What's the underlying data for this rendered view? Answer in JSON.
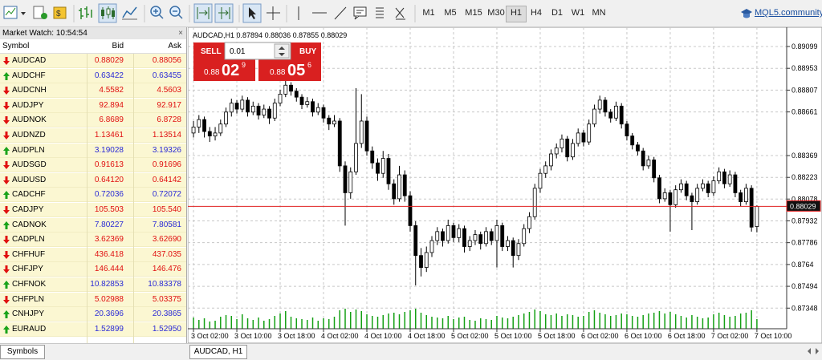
{
  "toolbar": {
    "timeframes": [
      "M1",
      "M5",
      "M15",
      "M30",
      "H1",
      "H4",
      "D1",
      "W1",
      "MN"
    ],
    "active_timeframe": 4,
    "community_link": "MQL5.community"
  },
  "market_watch": {
    "title": "Market Watch: 10:54:54",
    "columns": [
      "Symbol",
      "Bid",
      "Ask"
    ],
    "up_text_color": "#2b2bd6",
    "down_text_color": "#e01010",
    "up_arrow_color": "#1aa31a",
    "down_arrow_color": "#e01010",
    "rows": [
      {
        "symbol": "AUDCAD",
        "bid": "0.88029",
        "ask": "0.88056",
        "direction": "down"
      },
      {
        "symbol": "AUDCHF",
        "bid": "0.63422",
        "ask": "0.63455",
        "direction": "up"
      },
      {
        "symbol": "AUDCNH",
        "bid": "4.5582",
        "ask": "4.5603",
        "direction": "down"
      },
      {
        "symbol": "AUDJPY",
        "bid": "92.894",
        "ask": "92.917",
        "direction": "down"
      },
      {
        "symbol": "AUDNOK",
        "bid": "6.8689",
        "ask": "6.8728",
        "direction": "down"
      },
      {
        "symbol": "AUDNZD",
        "bid": "1.13461",
        "ask": "1.13514",
        "direction": "down"
      },
      {
        "symbol": "AUDPLN",
        "bid": "3.19028",
        "ask": "3.19326",
        "direction": "up"
      },
      {
        "symbol": "AUDSGD",
        "bid": "0.91613",
        "ask": "0.91696",
        "direction": "down"
      },
      {
        "symbol": "AUDUSD",
        "bid": "0.64120",
        "ask": "0.64142",
        "direction": "down"
      },
      {
        "symbol": "CADCHF",
        "bid": "0.72036",
        "ask": "0.72072",
        "direction": "up"
      },
      {
        "symbol": "CADJPY",
        "bid": "105.503",
        "ask": "105.540",
        "direction": "down"
      },
      {
        "symbol": "CADNOK",
        "bid": "7.80227",
        "ask": "7.80581",
        "direction": "up"
      },
      {
        "symbol": "CADPLN",
        "bid": "3.62369",
        "ask": "3.62690",
        "direction": "down"
      },
      {
        "symbol": "CHFHUF",
        "bid": "436.418",
        "ask": "437.035",
        "direction": "down"
      },
      {
        "symbol": "CHFJPY",
        "bid": "146.444",
        "ask": "146.476",
        "direction": "down"
      },
      {
        "symbol": "CHFNOK",
        "bid": "10.82853",
        "ask": "10.83378",
        "direction": "up"
      },
      {
        "symbol": "CHFPLN",
        "bid": "5.02988",
        "ask": "5.03375",
        "direction": "down"
      },
      {
        "symbol": "CNHJPY",
        "bid": "20.3696",
        "ask": "20.3865",
        "direction": "up"
      },
      {
        "symbol": "EURAUD",
        "bid": "1.52899",
        "ask": "1.52950",
        "direction": "up"
      }
    ]
  },
  "tabs": {
    "market_watch": "Symbols",
    "chart": "AUDCAD, H1"
  },
  "trade_panel": {
    "sell": "SELL",
    "buy": "BUY",
    "lot": "0.01",
    "sell_big": "0.88",
    "sell_pips": "02",
    "sell_point": "9",
    "buy_big": "0.88",
    "buy_pips": "05",
    "buy_point": "6"
  },
  "chart_data": {
    "type": "candlestick",
    "title": "AUDCAD,H1",
    "candles": [
      [
        0.8852,
        0.886,
        0.8849,
        0.8856
      ],
      [
        0.8856,
        0.8864,
        0.8852,
        0.8861
      ],
      [
        0.8861,
        0.8863,
        0.8849,
        0.8853
      ],
      [
        0.8853,
        0.8856,
        0.8846,
        0.885
      ],
      [
        0.885,
        0.8856,
        0.8847,
        0.8852
      ],
      [
        0.8852,
        0.8861,
        0.885,
        0.8858
      ],
      [
        0.8858,
        0.8869,
        0.8856,
        0.8866
      ],
      [
        0.8866,
        0.8875,
        0.8863,
        0.8872
      ],
      [
        0.8872,
        0.8874,
        0.8865,
        0.8868
      ],
      [
        0.8868,
        0.8877,
        0.8866,
        0.8874
      ],
      [
        0.8874,
        0.8876,
        0.8863,
        0.8866
      ],
      [
        0.8866,
        0.8873,
        0.8864,
        0.887
      ],
      [
        0.887,
        0.8872,
        0.8861,
        0.8864
      ],
      [
        0.8864,
        0.8871,
        0.8862,
        0.8868
      ],
      [
        0.8868,
        0.887,
        0.8858,
        0.8862
      ],
      [
        0.8862,
        0.8875,
        0.886,
        0.8872
      ],
      [
        0.8872,
        0.8881,
        0.887,
        0.8878
      ],
      [
        0.8878,
        0.8887,
        0.8876,
        0.8884
      ],
      [
        0.8884,
        0.8886,
        0.8877,
        0.888
      ],
      [
        0.888,
        0.8882,
        0.8873,
        0.8876
      ],
      [
        0.8876,
        0.8878,
        0.8868,
        0.8871
      ],
      [
        0.8871,
        0.8876,
        0.8869,
        0.8873
      ],
      [
        0.8873,
        0.8875,
        0.8863,
        0.8866
      ],
      [
        0.8866,
        0.8872,
        0.8864,
        0.8869
      ],
      [
        0.8869,
        0.8871,
        0.8859,
        0.8862
      ],
      [
        0.8862,
        0.8864,
        0.8854,
        0.8858
      ],
      [
        0.8858,
        0.8864,
        0.8856,
        0.886
      ],
      [
        0.886,
        0.8862,
        0.8826,
        0.883
      ],
      [
        0.883,
        0.8833,
        0.879,
        0.8812
      ],
      [
        0.8812,
        0.8829,
        0.8808,
        0.8826
      ],
      [
        0.8826,
        0.8882,
        0.8824,
        0.8845
      ],
      [
        0.8845,
        0.8878,
        0.8842,
        0.886
      ],
      [
        0.886,
        0.8863,
        0.8837,
        0.884
      ],
      [
        0.884,
        0.8843,
        0.8828,
        0.8832
      ],
      [
        0.8832,
        0.8835,
        0.882,
        0.8825
      ],
      [
        0.8825,
        0.884,
        0.8822,
        0.8835
      ],
      [
        0.8835,
        0.8838,
        0.8814,
        0.8818
      ],
      [
        0.8818,
        0.8821,
        0.8804,
        0.8808
      ],
      [
        0.8808,
        0.883,
        0.8806,
        0.8824
      ],
      [
        0.8824,
        0.8827,
        0.8806,
        0.881
      ],
      [
        0.881,
        0.8813,
        0.8786,
        0.879
      ],
      [
        0.879,
        0.8793,
        0.875,
        0.877
      ],
      [
        0.877,
        0.8775,
        0.8756,
        0.8762
      ],
      [
        0.8762,
        0.8776,
        0.8759,
        0.8772
      ],
      [
        0.8772,
        0.8783,
        0.8769,
        0.878
      ],
      [
        0.878,
        0.8789,
        0.8777,
        0.8786
      ],
      [
        0.8786,
        0.8788,
        0.8776,
        0.878
      ],
      [
        0.878,
        0.8794,
        0.8778,
        0.879
      ],
      [
        0.879,
        0.8792,
        0.8779,
        0.8782
      ],
      [
        0.8782,
        0.8791,
        0.8779,
        0.8788
      ],
      [
        0.8788,
        0.879,
        0.8772,
        0.8776
      ],
      [
        0.8776,
        0.8783,
        0.8773,
        0.878
      ],
      [
        0.878,
        0.8787,
        0.8777,
        0.8784
      ],
      [
        0.8784,
        0.8786,
        0.8774,
        0.8778
      ],
      [
        0.8778,
        0.8789,
        0.8776,
        0.8786
      ],
      [
        0.8786,
        0.8788,
        0.8777,
        0.878
      ],
      [
        0.878,
        0.8794,
        0.8762,
        0.879
      ],
      [
        0.879,
        0.8792,
        0.8773,
        0.8776
      ],
      [
        0.8776,
        0.8783,
        0.8773,
        0.878
      ],
      [
        0.878,
        0.8782,
        0.8762,
        0.877
      ],
      [
        0.877,
        0.8781,
        0.8767,
        0.8778
      ],
      [
        0.8778,
        0.8791,
        0.8776,
        0.8788
      ],
      [
        0.8788,
        0.8799,
        0.8785,
        0.8796
      ],
      [
        0.8796,
        0.8818,
        0.8794,
        0.8815
      ],
      [
        0.8815,
        0.8828,
        0.8812,
        0.8825
      ],
      [
        0.8825,
        0.8833,
        0.8822,
        0.883
      ],
      [
        0.883,
        0.8841,
        0.8827,
        0.8838
      ],
      [
        0.8838,
        0.8845,
        0.8835,
        0.8842
      ],
      [
        0.8842,
        0.8851,
        0.8839,
        0.8848
      ],
      [
        0.8848,
        0.885,
        0.8833,
        0.8836
      ],
      [
        0.8836,
        0.8848,
        0.8834,
        0.8845
      ],
      [
        0.8845,
        0.8855,
        0.8843,
        0.8852
      ],
      [
        0.8852,
        0.8854,
        0.8843,
        0.8846
      ],
      [
        0.8846,
        0.8861,
        0.8844,
        0.8858
      ],
      [
        0.8858,
        0.8871,
        0.8856,
        0.8868
      ],
      [
        0.8868,
        0.8877,
        0.8865,
        0.8874
      ],
      [
        0.8874,
        0.8876,
        0.8863,
        0.8866
      ],
      [
        0.8866,
        0.8868,
        0.8859,
        0.8862
      ],
      [
        0.8862,
        0.8873,
        0.886,
        0.887
      ],
      [
        0.887,
        0.8872,
        0.8855,
        0.8858
      ],
      [
        0.8858,
        0.886,
        0.8847,
        0.885
      ],
      [
        0.885,
        0.8852,
        0.8841,
        0.8844
      ],
      [
        0.8844,
        0.8846,
        0.8837,
        0.884
      ],
      [
        0.884,
        0.8842,
        0.8827,
        0.883
      ],
      [
        0.883,
        0.8837,
        0.8828,
        0.8834
      ],
      [
        0.8834,
        0.8836,
        0.8819,
        0.8822
      ],
      [
        0.8822,
        0.8824,
        0.8805,
        0.8808
      ],
      [
        0.8808,
        0.8815,
        0.8806,
        0.8812
      ],
      [
        0.8812,
        0.8814,
        0.8786,
        0.8804
      ],
      [
        0.8804,
        0.8817,
        0.8802,
        0.8814
      ],
      [
        0.8814,
        0.8821,
        0.8812,
        0.8818
      ],
      [
        0.8818,
        0.882,
        0.8807,
        0.881
      ],
      [
        0.881,
        0.8812,
        0.8787,
        0.8806
      ],
      [
        0.8806,
        0.8818,
        0.8804,
        0.8815
      ],
      [
        0.8815,
        0.8821,
        0.8813,
        0.8818
      ],
      [
        0.8818,
        0.882,
        0.8809,
        0.8812
      ],
      [
        0.8812,
        0.8823,
        0.881,
        0.882
      ],
      [
        0.882,
        0.8829,
        0.8818,
        0.8826
      ],
      [
        0.8826,
        0.8828,
        0.8815,
        0.8818
      ],
      [
        0.8818,
        0.8827,
        0.8816,
        0.8824
      ],
      [
        0.8824,
        0.8826,
        0.8809,
        0.8812
      ],
      [
        0.8812,
        0.8814,
        0.8803,
        0.8806
      ],
      [
        0.8806,
        0.8818,
        0.8804,
        0.8815
      ],
      [
        0.8815,
        0.8817,
        0.8786,
        0.8789
      ],
      [
        0.87894,
        0.88036,
        0.87855,
        0.88029
      ]
    ],
    "volumes": [
      1400,
      1100,
      1300,
      900,
      1000,
      1500,
      1700,
      1600,
      1200,
      1800,
      1300,
      1100,
      1400,
      1000,
      1200,
      1600,
      1900,
      2200,
      1500,
      1300,
      1200,
      1100,
      1400,
      1000,
      1300,
      1200,
      1500,
      2300,
      2500,
      2100,
      2400,
      2200,
      1800,
      1600,
      1500,
      1700,
      1900,
      2000,
      1800,
      2100,
      2300,
      2500,
      2000,
      1700,
      1500,
      1400,
      1300,
      1600,
      1200,
      1400,
      1500,
      1100,
      1000,
      1300,
      1200,
      1100,
      1600,
      1400,
      1300,
      1500,
      1700,
      1900,
      2100,
      2400,
      2200,
      1800,
      1700,
      1900,
      1600,
      1800,
      1700,
      1500,
      1600,
      2100,
      2300,
      2000,
      1800,
      1600,
      1700,
      1900,
      1800,
      1600,
      1500,
      1700,
      1900,
      2000,
      2200,
      1900,
      2100,
      1800,
      1600,
      1400,
      1700,
      1500,
      1300,
      1400,
      1800,
      2000,
      1700,
      1500,
      1600,
      1900,
      2000,
      2300,
      1200
    ],
    "vlim": [
      0,
      3000
    ],
    "xlim": [
      -0.6,
      109.2
    ],
    "xticks": [
      {
        "value": 0,
        "label": "3 Oct 02:00"
      },
      {
        "value": 8,
        "label": "3 Oct 10:00"
      },
      {
        "value": 16,
        "label": "3 Oct 18:00"
      },
      {
        "value": 24,
        "label": "4 Oct 02:00"
      },
      {
        "value": 32,
        "label": "4 Oct 10:00"
      },
      {
        "value": 40,
        "label": "4 Oct 18:00"
      },
      {
        "value": 48,
        "label": "5 Oct 02:00"
      },
      {
        "value": 56,
        "label": "5 Oct 10:00"
      },
      {
        "value": 64,
        "label": "5 Oct 18:00"
      },
      {
        "value": 72,
        "label": "6 Oct 02:00"
      },
      {
        "value": 80,
        "label": "6 Oct 10:00"
      },
      {
        "value": 88,
        "label": "6 Oct 18:00"
      },
      {
        "value": 96,
        "label": "7 Oct 02:00"
      },
      {
        "value": 104,
        "label": "7 Oct 10:00"
      }
    ],
    "ylim": [
      0.8721,
      0.89217
    ],
    "yticks": [
      0.89099,
      0.88953,
      0.88807,
      0.88661,
      0.88369,
      0.88223,
      0.88078,
      0.87932,
      0.87786,
      0.8764,
      0.87494,
      0.87348
    ],
    "grid": true,
    "up_color": "#ffffff",
    "down_color": "#000000",
    "volume_color": "#14a014",
    "bid_line_color": "#e02020"
  }
}
